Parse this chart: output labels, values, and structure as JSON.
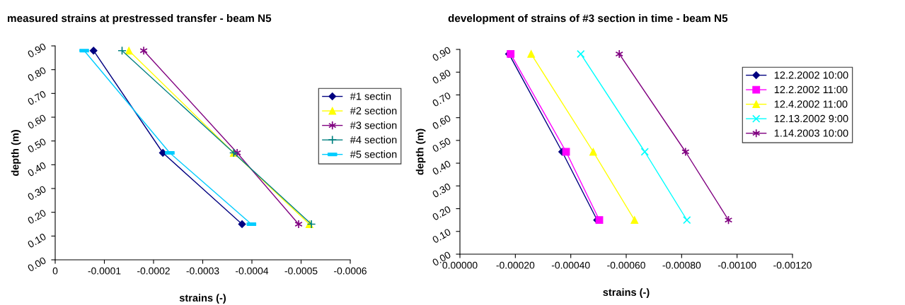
{
  "chart_data": [
    {
      "type": "line",
      "title": "measured strains at prestressed transfer - beam N5",
      "xlabel": "strains (-)",
      "ylabel": "depth (m)",
      "xlim": [
        0,
        -0.0006
      ],
      "xticks": [
        0,
        -0.0001,
        -0.0002,
        -0.0003,
        -0.0004,
        -0.0005,
        -0.0006
      ],
      "ylim": [
        0,
        0.9
      ],
      "yticks": [
        {
          "value": 0,
          "label": "0.00"
        },
        {
          "value": 0.1,
          "label": "0.10"
        },
        {
          "value": 0.2,
          "label": "0.20"
        },
        {
          "value": 0.3,
          "label": "0.30"
        },
        {
          "value": 0.4,
          "label": "0.40"
        },
        {
          "value": 0.5,
          "label": "0.50"
        },
        {
          "value": 0.6,
          "label": "0.60"
        },
        {
          "value": 0.7,
          "label": "0.70"
        },
        {
          "value": 0.8,
          "label": "0.80"
        },
        {
          "value": 0.9,
          "label": "0.90"
        }
      ],
      "grid": false,
      "legend": "right",
      "series": [
        {
          "name": "#1 sectin",
          "color": "#000080",
          "marker": "diamond",
          "x": [
            -7.8e-05,
            -0.000219,
            -0.00038
          ],
          "values": [
            0.88,
            0.45,
            0.15
          ]
        },
        {
          "name": "#2 section",
          "color": "#ffff00",
          "marker": "triangle",
          "x": [
            -0.00015,
            -0.000363,
            -0.000517
          ],
          "values": [
            0.88,
            0.45,
            0.15
          ]
        },
        {
          "name": "#3 section",
          "color": "#800080",
          "marker": "cross",
          "x": [
            -0.00018,
            -0.00037,
            -0.000495
          ],
          "values": [
            0.88,
            0.45,
            0.15
          ]
        },
        {
          "name": "#4 section",
          "color": "#008080",
          "marker": "plus",
          "x": [
            -0.000136,
            -0.000363,
            -0.000521
          ],
          "values": [
            0.88,
            0.45,
            0.15
          ]
        },
        {
          "name": "#5 section",
          "color": "#00ccff",
          "marker": "square",
          "x": [
            -5.9e-05,
            -0.000233,
            -0.000399
          ],
          "values": [
            0.88,
            0.45,
            0.15
          ]
        }
      ]
    },
    {
      "type": "line",
      "title": "development of strains of #3 section in time - beam N5",
      "xlabel": "strains (-)",
      "ylabel": "depth (m)",
      "xlim": [
        0,
        -0.0012
      ],
      "xticks": [
        {
          "value": 0,
          "label": "0.00000"
        },
        {
          "value": -0.0002,
          "label": "-0.00020"
        },
        {
          "value": -0.0004,
          "label": "-0.00040"
        },
        {
          "value": -0.0006,
          "label": "-0.00060"
        },
        {
          "value": -0.0008,
          "label": "-0.00080"
        },
        {
          "value": -0.001,
          "label": "-0.00100"
        },
        {
          "value": -0.0012,
          "label": "-0.00120"
        }
      ],
      "ylim": [
        0,
        0.9
      ],
      "yticks": [
        {
          "value": 0,
          "label": "0.00"
        },
        {
          "value": 0.1,
          "label": "0.10"
        },
        {
          "value": 0.2,
          "label": "0.20"
        },
        {
          "value": 0.3,
          "label": "0.30"
        },
        {
          "value": 0.4,
          "label": "0.40"
        },
        {
          "value": 0.5,
          "label": "0.50"
        },
        {
          "value": 0.6,
          "label": "0.60"
        },
        {
          "value": 0.7,
          "label": "0.70"
        },
        {
          "value": 0.8,
          "label": "0.80"
        },
        {
          "value": 0.9,
          "label": "0.90"
        }
      ],
      "grid": false,
      "legend": "top right",
      "series": [
        {
          "name": "12.2.2002 10:00",
          "color": "#000080",
          "marker": "diamond",
          "x": [
            -0.000177,
            -0.000369,
            -0.000495
          ],
          "values": [
            0.88,
            0.45,
            0.15
          ]
        },
        {
          "name": "12.2.2002 11:00",
          "color": "#ff00ff",
          "marker": "square",
          "x": [
            -0.000183,
            -0.000383,
            -0.000503
          ],
          "values": [
            0.88,
            0.45,
            0.15
          ]
        },
        {
          "name": "12.4.2002 11:00",
          "color": "#ffff00",
          "marker": "triangle",
          "x": [
            -0.000257,
            -0.000481,
            -0.00063
          ],
          "values": [
            0.88,
            0.45,
            0.15
          ]
        },
        {
          "name": "12.13.2002 9:00",
          "color": "#00ffff",
          "marker": "x",
          "x": [
            -0.000436,
            -0.000667,
            -0.000819
          ],
          "values": [
            0.88,
            0.45,
            0.15
          ]
        },
        {
          "name": "1.14.2003 10:00",
          "color": "#800080",
          "marker": "cross",
          "x": [
            -0.000575,
            -0.000814,
            -0.000969
          ],
          "values": [
            0.88,
            0.45,
            0.15
          ]
        }
      ]
    }
  ]
}
